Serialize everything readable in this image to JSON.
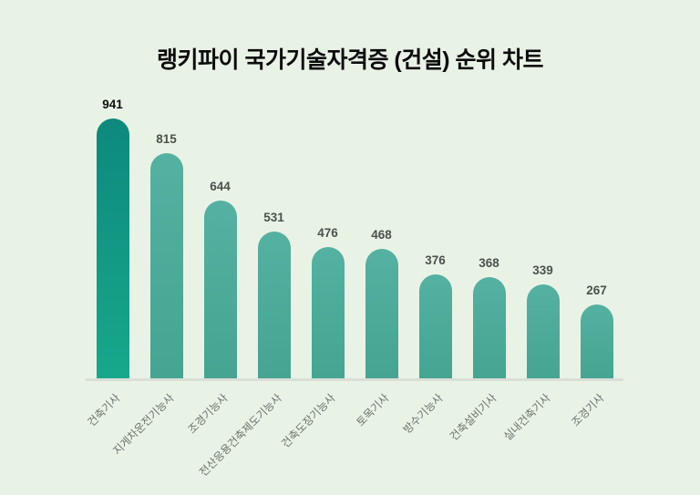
{
  "title": "랭키파이 국가기술자격증 (건설) 순위 차트",
  "colors": {
    "background": "#e9f3e5",
    "bar_highlight_top": "#0d897d",
    "bar_highlight_bottom": "#17a88b",
    "bar_normal_top": "#55b1a1",
    "bar_normal_bottom": "#45a492",
    "axis_line": "#d9ded6",
    "value_label": "#4b514c",
    "value_label_highlight": "#0d0d0d",
    "category_label": "#6d716c",
    "title_color": "#0b0b0b"
  },
  "chart_data": {
    "type": "bar",
    "title": "랭키파이 국가기술자격증 (건설) 순위 차트",
    "categories": [
      "건축기사",
      "지게차운전기능사",
      "조경기능사",
      "전산응용건축제도기능사",
      "건축도장기능사",
      "토목기사",
      "방수기능사",
      "건축설비기사",
      "실내건축기사",
      "조경기사"
    ],
    "values": [
      941,
      815,
      644,
      531,
      476,
      468,
      376,
      368,
      339,
      267
    ],
    "highlighted_index": 0,
    "xlabel": "",
    "ylabel": "",
    "ylim": [
      0,
      941
    ],
    "grid": false,
    "legend": false,
    "value_labels_shown": true,
    "x_tick_rotation_deg": -45
  }
}
